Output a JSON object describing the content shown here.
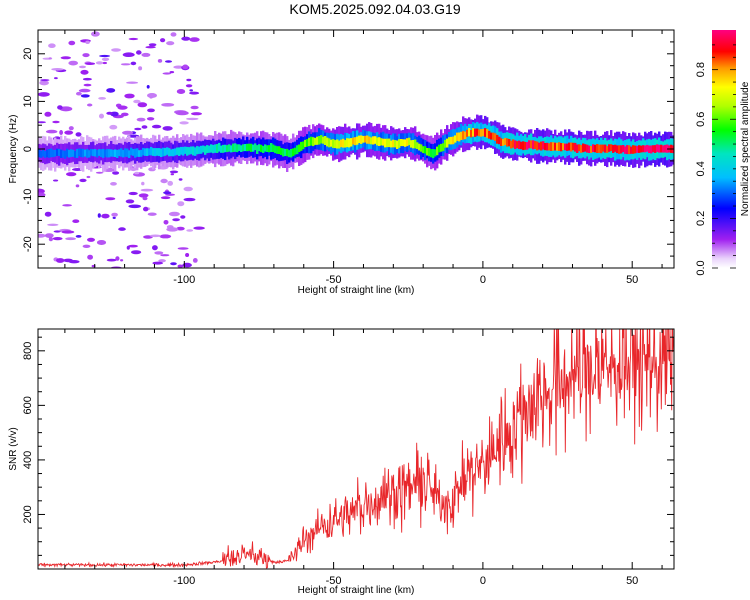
{
  "title": "KOM5.2025.092.04.03.G19",
  "colors": {
    "snr_line": "#e8262a",
    "background": "#ffffff",
    "axis": "#000000"
  },
  "chart_data": [
    {
      "type": "heatmap",
      "xlabel": "Height of straight line (km)",
      "ylabel": "Frequency (Hz)",
      "xlim": [
        -149,
        64
      ],
      "ylim": [
        -25,
        25
      ],
      "x_ticks": [
        "-100",
        "-50",
        "0",
        "50"
      ],
      "x_tick_values": [
        -100,
        -50,
        0,
        50
      ],
      "y_ticks": [
        "-20",
        "-10",
        "0",
        "10",
        "20"
      ],
      "y_tick_values": [
        -20,
        -10,
        0,
        10,
        20
      ],
      "colorbar": {
        "label": "Normalized spectral amplitude",
        "ticks": [
          "0.0",
          "0.2",
          "0.4",
          "0.6",
          "0.8"
        ],
        "tick_values": [
          0.0,
          0.2,
          0.4,
          0.6,
          0.8
        ],
        "range": [
          0,
          0.96
        ],
        "colormap": "rainbow (violet-blue-cyan-green-yellow-red-magenta)"
      },
      "ridge": {
        "x": [
          -149,
          -120,
          -100,
          -90,
          -80,
          -70,
          -65,
          -60,
          -55,
          -50,
          -45,
          -40,
          -35,
          -30,
          -25,
          -20,
          -17,
          -15,
          -12,
          -8,
          -5,
          -2,
          0,
          3,
          6,
          10,
          15,
          20,
          25,
          30,
          35,
          40,
          45,
          50,
          55,
          60,
          64
        ],
        "freq": [
          -1,
          -0.8,
          -0.5,
          0,
          0.3,
          0,
          -1,
          1,
          2,
          1,
          1.5,
          2,
          1.5,
          1,
          1.5,
          0,
          -1,
          0,
          1.5,
          2.8,
          3.3,
          3.5,
          3.5,
          2.8,
          1.5,
          1,
          0.8,
          0.6,
          0.5,
          0.3,
          0.1,
          0.1,
          0,
          -0.2,
          0,
          0,
          0
        ],
        "amplitude": [
          0.3,
          0.35,
          0.4,
          0.45,
          0.5,
          0.55,
          0.5,
          0.6,
          0.65,
          0.7,
          0.75,
          0.75,
          0.7,
          0.7,
          0.7,
          0.6,
          0.55,
          0.6,
          0.7,
          0.75,
          0.8,
          0.85,
          0.85,
          0.85,
          0.85,
          0.9,
          0.9,
          0.9,
          0.85,
          0.9,
          0.88,
          0.9,
          0.88,
          0.9,
          0.92,
          0.95,
          0.9
        ]
      },
      "noise_region_x": [
        -149,
        -95
      ]
    },
    {
      "type": "line",
      "xlabel": "Height of straight line (km)",
      "ylabel": "SNR (v/v)",
      "xlim": [
        -149,
        64
      ],
      "ylim": [
        0,
        880
      ],
      "x_ticks": [
        "-100",
        "-50",
        "0",
        "50"
      ],
      "x_tick_values": [
        -100,
        -50,
        0,
        50
      ],
      "y_ticks": [
        "200",
        "400",
        "600",
        "800"
      ],
      "y_tick_values": [
        200,
        400,
        600,
        800
      ],
      "series": [
        {
          "x": [
            -149,
            -140,
            -130,
            -120,
            -110,
            -100,
            -95,
            -90,
            -85,
            -80,
            -75,
            -70,
            -65,
            -60,
            -55,
            -50,
            -45,
            -40,
            -35,
            -30,
            -25,
            -20,
            -15,
            -10,
            -5,
            0,
            5,
            10,
            15,
            20,
            25,
            30,
            35,
            40,
            45,
            50,
            55,
            60,
            64
          ],
          "y": [
            15,
            15,
            15,
            15,
            15,
            15,
            20,
            25,
            35,
            50,
            45,
            25,
            30,
            100,
            150,
            180,
            200,
            230,
            260,
            280,
            300,
            320,
            250,
            250,
            350,
            380,
            460,
            520,
            600,
            640,
            680,
            720,
            730,
            740,
            750,
            760,
            770,
            760,
            780
          ]
        }
      ]
    }
  ]
}
